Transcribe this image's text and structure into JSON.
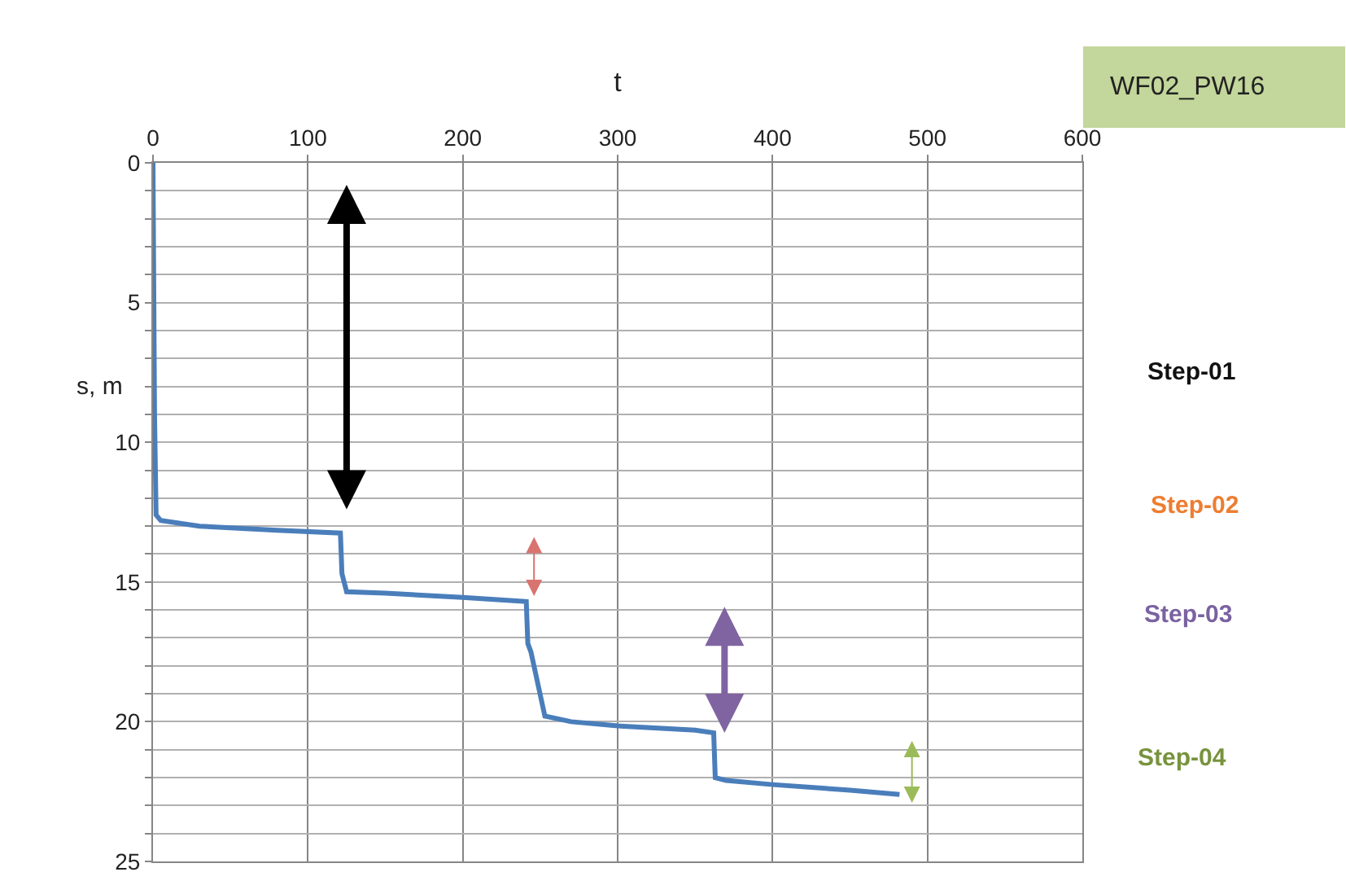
{
  "chart_data": {
    "type": "line",
    "xlabel": "t",
    "ylabel": "s, m",
    "series": [
      {
        "color": "#4a7ebb",
        "x": [
          0,
          1,
          2,
          5,
          30,
          80,
          121,
          122,
          125,
          150,
          200,
          241,
          242,
          244,
          253,
          270,
          300,
          350,
          362,
          363,
          370,
          400,
          450,
          482
        ],
        "values": [
          0,
          9,
          12.6,
          12.8,
          13.0,
          13.15,
          13.25,
          14.7,
          15.35,
          15.4,
          15.55,
          15.7,
          17.2,
          17.5,
          19.8,
          20.0,
          20.15,
          20.3,
          20.4,
          22.0,
          22.1,
          22.25,
          22.45,
          22.6
        ]
      }
    ],
    "xlim": [
      0,
      600
    ],
    "xticks": [
      0,
      100,
      200,
      300,
      400,
      500,
      600
    ],
    "ylim": [
      25,
      0
    ],
    "yticks": [
      0,
      {
        "value": 1,
        "label": null
      },
      {
        "value": 2,
        "label": null
      },
      {
        "value": 3,
        "label": null
      },
      {
        "value": 4,
        "label": null
      },
      5,
      {
        "value": 6,
        "label": null
      },
      {
        "value": 7,
        "label": null
      },
      {
        "value": 8,
        "label": null
      },
      {
        "value": 9,
        "label": null
      },
      10,
      {
        "value": 11,
        "label": null
      },
      {
        "value": 12,
        "label": null
      },
      {
        "value": 13,
        "label": null
      },
      {
        "value": 14,
        "label": null
      },
      15,
      {
        "value": 16,
        "label": null
      },
      {
        "value": 17,
        "label": null
      },
      {
        "value": 18,
        "label": null
      },
      {
        "value": 19,
        "label": null
      },
      20,
      {
        "value": 21,
        "label": null
      },
      {
        "value": 22,
        "label": null
      },
      {
        "value": 23,
        "label": null
      },
      {
        "value": 24,
        "label": null
      },
      25
    ],
    "grid": true,
    "marker": "none",
    "line_style": "solid",
    "annotations": [
      "WF02_PW16",
      "Step-01",
      "Step-02",
      "Step-03",
      "Step-04"
    ]
  }
}
